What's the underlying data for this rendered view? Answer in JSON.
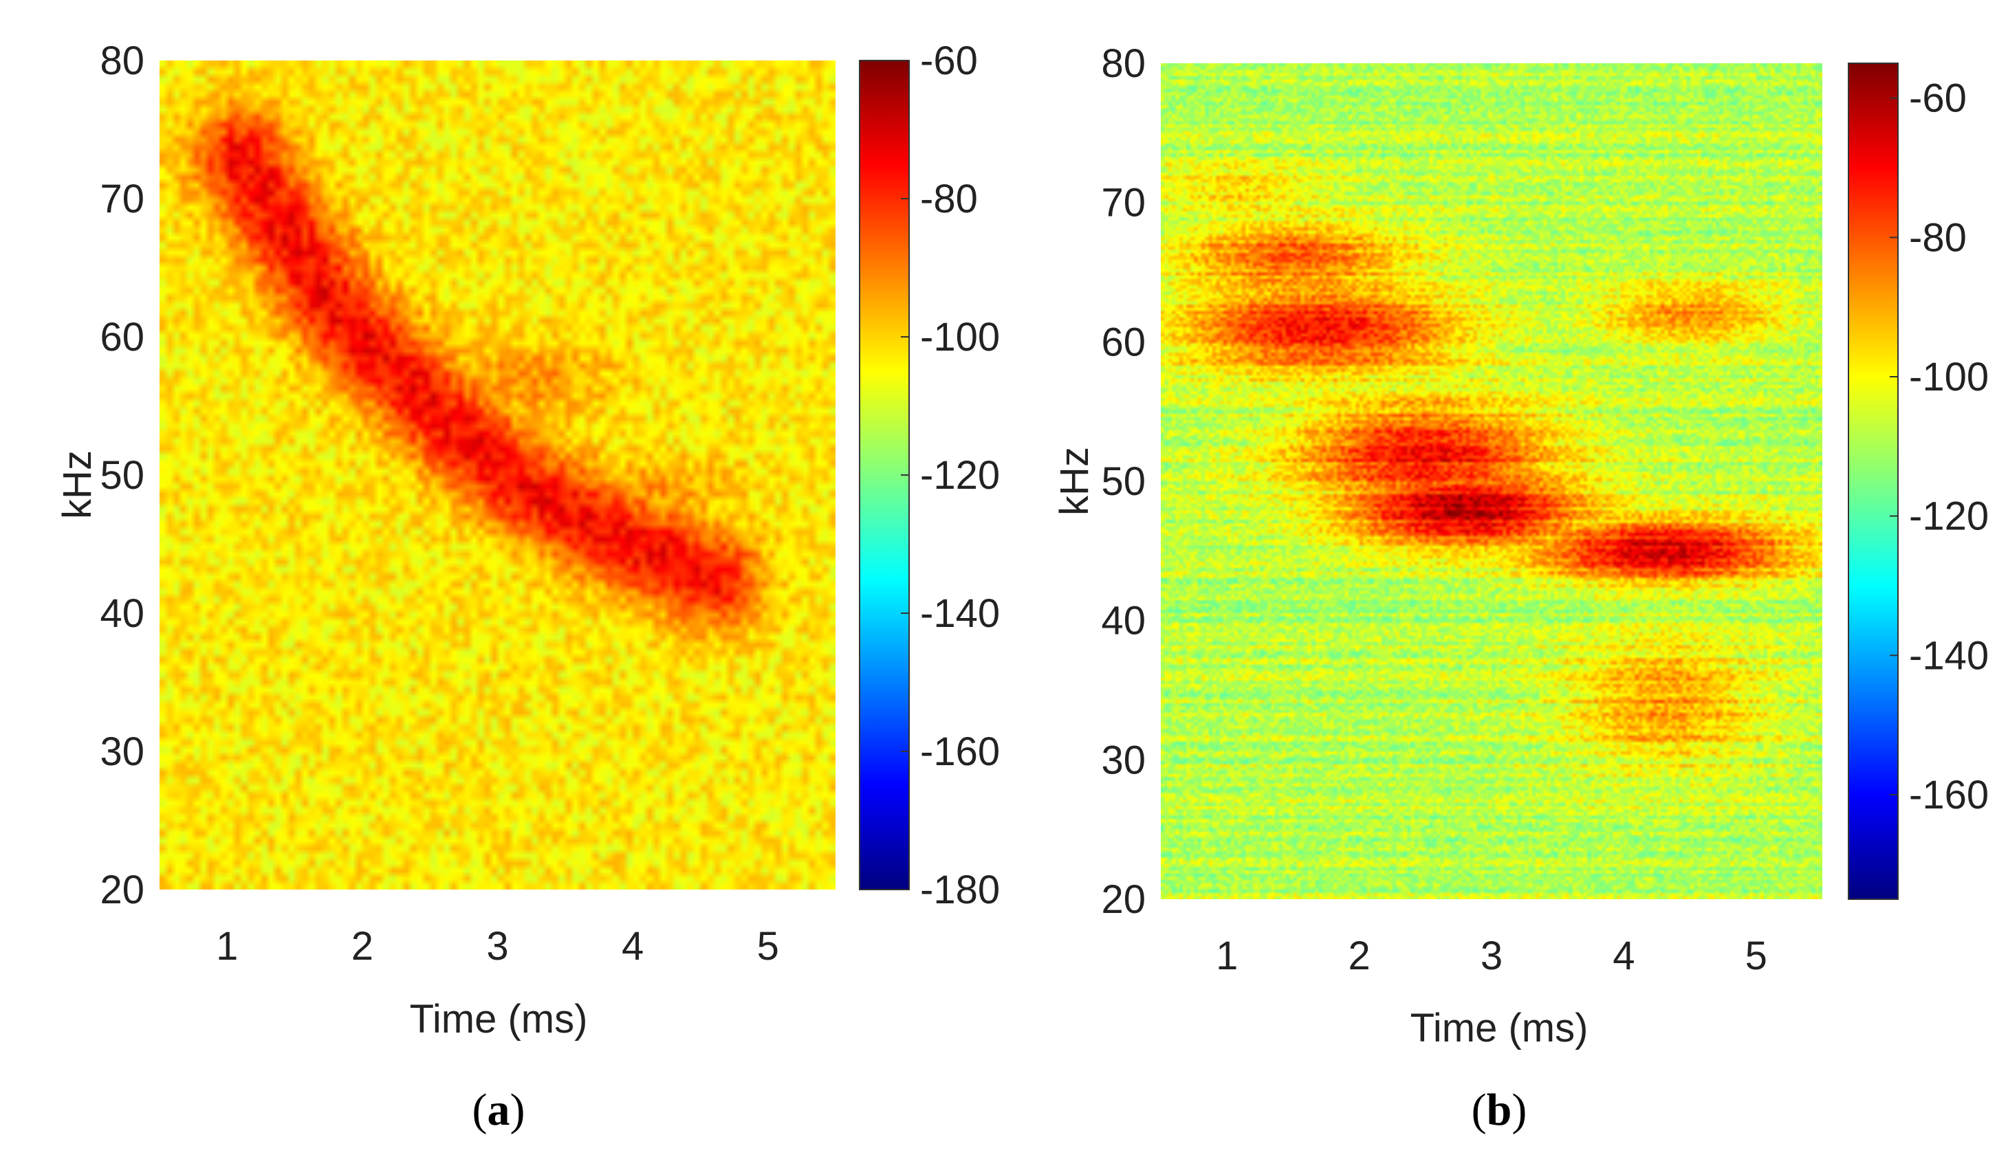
{
  "chart_data": [
    {
      "type": "heatmap",
      "caption": "a",
      "title": "",
      "xlabel": "Time (ms)",
      "ylabel": "kHz",
      "xlim": [
        0.5,
        5.5
      ],
      "ylim": [
        20,
        80
      ],
      "xticks": [
        1,
        2,
        3,
        4,
        5
      ],
      "yticks": [
        20,
        30,
        40,
        50,
        60,
        70,
        80
      ],
      "colorbar": {
        "range": [
          -180,
          -60
        ],
        "ticks": [
          -60,
          -80,
          -100,
          -120,
          -140,
          -160,
          -180
        ],
        "colormap": "jet"
      },
      "background_level": -103,
      "features": [
        {
          "shape": "chirp",
          "path": [
            [
              1.1,
              73
            ],
            [
              1.8,
              62
            ],
            [
              2.5,
              55
            ],
            [
              3.2,
              49
            ],
            [
              4.0,
              45
            ],
            [
              4.6,
              42.5
            ]
          ],
          "level": -75,
          "width_khz": 3.5
        },
        {
          "shape": "blob",
          "t": 1.3,
          "f": 72,
          "level": -90,
          "rt": 0.35,
          "rf": 2.5
        },
        {
          "shape": "blob",
          "t": 3.2,
          "f": 57,
          "level": -92,
          "rt": 0.7,
          "rf": 3
        },
        {
          "shape": "blob",
          "t": 4.2,
          "f": 49,
          "level": -93,
          "rt": 0.6,
          "rf": 2.5
        }
      ]
    },
    {
      "type": "heatmap",
      "caption": "b",
      "title": "",
      "xlabel": "Time (ms)",
      "ylabel": "kHz",
      "xlim": [
        0.5,
        5.5
      ],
      "ylim": [
        20,
        80
      ],
      "xticks": [
        1,
        2,
        3,
        4,
        5
      ],
      "yticks": [
        20,
        30,
        40,
        50,
        60,
        70,
        80
      ],
      "colorbar": {
        "range": [
          -175,
          -55
        ],
        "ticks": [
          -60,
          -80,
          -100,
          -120,
          -140,
          -160
        ],
        "colormap": "jet"
      },
      "background_level": -108,
      "features": [
        {
          "shape": "blob",
          "t": 1.5,
          "f": 66,
          "level": -80,
          "rt": 1.0,
          "rf": 3
        },
        {
          "shape": "blob",
          "t": 1.7,
          "f": 61,
          "level": -70,
          "rt": 1.2,
          "rf": 3.5
        },
        {
          "shape": "blob",
          "t": 2.5,
          "f": 52,
          "level": -70,
          "rt": 1.1,
          "rf": 4
        },
        {
          "shape": "blob",
          "t": 2.8,
          "f": 48,
          "level": -62,
          "rt": 1.0,
          "rf": 3
        },
        {
          "shape": "blob",
          "t": 4.3,
          "f": 45,
          "level": -65,
          "rt": 1.1,
          "rf": 2.5
        },
        {
          "shape": "blob",
          "t": 4.5,
          "f": 62,
          "level": -86,
          "rt": 0.8,
          "rf": 2.5
        },
        {
          "shape": "blob",
          "t": 4.3,
          "f": 34,
          "level": -88,
          "rt": 0.8,
          "rf": 5
        },
        {
          "shape": "blob",
          "t": 1.1,
          "f": 71,
          "level": -95,
          "rt": 0.7,
          "rf": 2
        }
      ]
    }
  ]
}
